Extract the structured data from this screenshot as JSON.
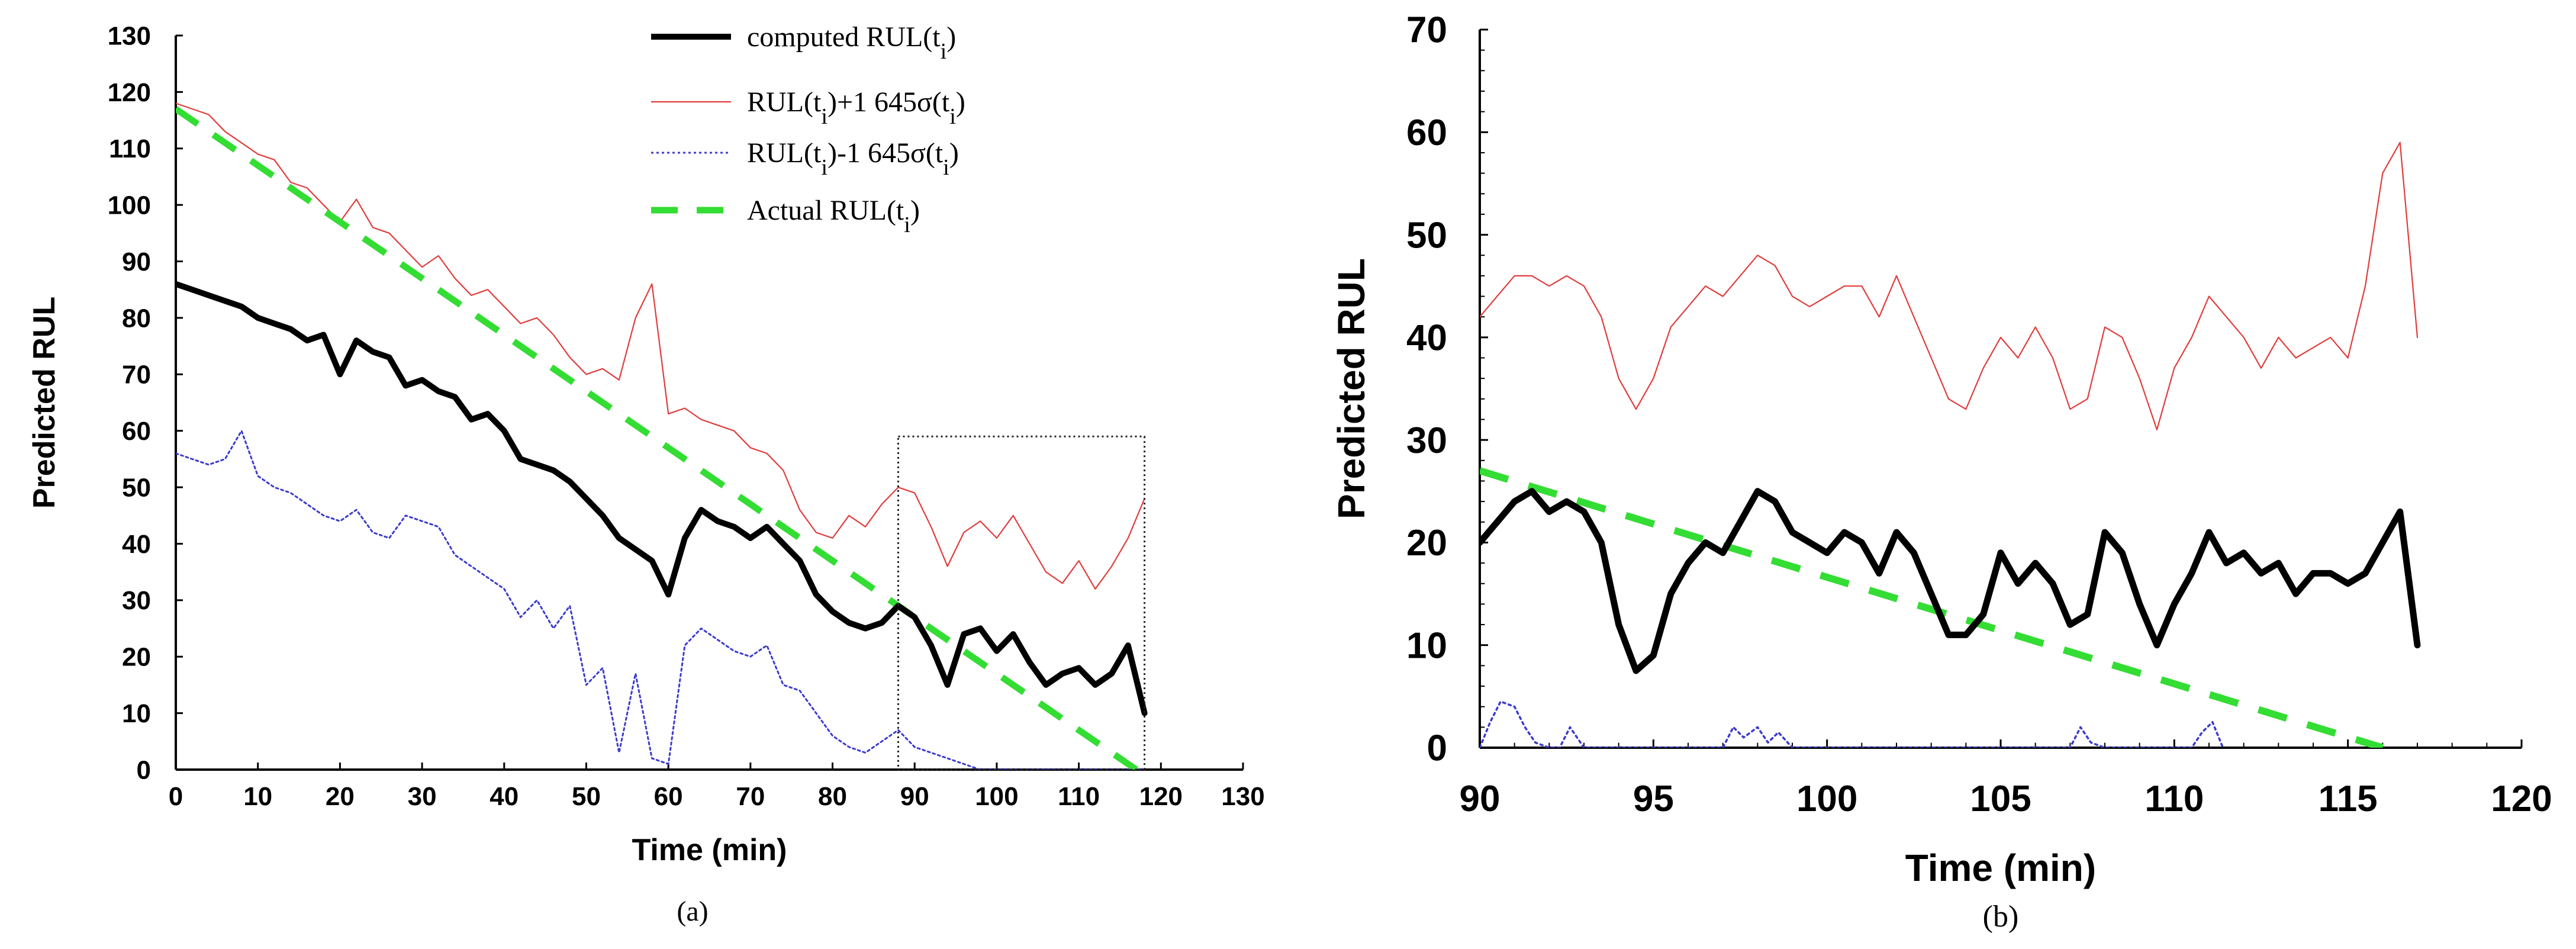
{
  "chart_data": [
    {
      "type": "line",
      "caption": "(a)",
      "xlabel": "Time (min)",
      "ylabel": "Predicted RUL",
      "xlim": [
        0,
        130
      ],
      "ylim": [
        0,
        130
      ],
      "x_ticks": [
        0,
        10,
        20,
        30,
        40,
        50,
        60,
        70,
        80,
        90,
        100,
        110,
        120,
        130
      ],
      "y_ticks": [
        0,
        10,
        20,
        30,
        40,
        50,
        60,
        70,
        80,
        90,
        100,
        110,
        120,
        130
      ],
      "legend": {
        "position": "top-right",
        "entries": [
          {
            "base": "computed RUL(t",
            "sub": "i",
            "suffix": ")",
            "color": "#000000",
            "style": "solid-thick"
          },
          {
            "base": "RUL(t",
            "sub": "i",
            "mid": ")+1 645σ(t",
            "sub2": "i",
            "suffix": ")",
            "color": "#e03c3c",
            "style": "solid-thin"
          },
          {
            "base": "RUL(t",
            "sub": "i",
            "mid": ")-1 645σ(t",
            "sub2": "i",
            "suffix": ")",
            "color": "#3b3bd0",
            "style": "dotted"
          },
          {
            "base": "Actual RUL(t",
            "sub": "i",
            "suffix": ")",
            "color": "#33dd33",
            "style": "dashed"
          }
        ]
      },
      "annotation": {
        "type": "dotted-box",
        "x_range": [
          88,
          118
        ],
        "y_range": [
          0,
          59
        ]
      },
      "series": [
        {
          "color": "#000000",
          "x": [
            0,
            2,
            4,
            6,
            8,
            10,
            12,
            14,
            16,
            18,
            20,
            22,
            24,
            26,
            28,
            30,
            32,
            34,
            36,
            38,
            40,
            42,
            44,
            46,
            48,
            50,
            52,
            54,
            56,
            58,
            60,
            62,
            64,
            66,
            68,
            70,
            72,
            74,
            76,
            78,
            80,
            82,
            84,
            86,
            88,
            90,
            92,
            94,
            96,
            98,
            100,
            102,
            104,
            106,
            108,
            110,
            112,
            114,
            116,
            118
          ],
          "y": [
            86,
            85,
            84,
            83,
            82,
            80,
            79,
            78,
            76,
            77,
            70,
            76,
            74,
            73,
            68,
            69,
            67,
            66,
            62,
            63,
            60,
            55,
            54,
            53,
            51,
            48,
            45,
            41,
            39,
            37,
            31,
            41,
            46,
            44,
            43,
            41,
            43,
            40,
            37,
            31,
            28,
            26,
            25,
            26,
            29,
            27,
            22,
            15,
            24,
            25,
            21,
            24,
            19,
            15,
            17,
            18,
            15,
            17,
            22,
            10
          ]
        },
        {
          "color": "#e03c3c",
          "x": [
            0,
            2,
            4,
            6,
            8,
            10,
            12,
            14,
            16,
            18,
            20,
            22,
            24,
            26,
            28,
            30,
            32,
            34,
            36,
            38,
            40,
            42,
            44,
            46,
            48,
            50,
            52,
            54,
            56,
            58,
            60,
            62,
            64,
            66,
            68,
            70,
            72,
            74,
            76,
            78,
            80,
            82,
            84,
            86,
            88,
            90,
            92,
            94,
            96,
            98,
            100,
            102,
            104,
            106,
            108,
            110,
            112,
            114,
            116,
            118
          ],
          "y": [
            118,
            117,
            116,
            113,
            111,
            109,
            108,
            104,
            103,
            100,
            97,
            101,
            96,
            95,
            92,
            89,
            91,
            87,
            84,
            85,
            82,
            79,
            80,
            77,
            73,
            70,
            71,
            69,
            80,
            86,
            63,
            64,
            62,
            61,
            60,
            57,
            56,
            53,
            46,
            42,
            41,
            45,
            43,
            47,
            50,
            49,
            43,
            36,
            42,
            44,
            41,
            45,
            40,
            35,
            33,
            37,
            32,
            36,
            41,
            48
          ]
        },
        {
          "color": "#3b3bd0",
          "x": [
            0,
            2,
            4,
            6,
            8,
            10,
            12,
            14,
            16,
            18,
            20,
            22,
            24,
            26,
            28,
            30,
            32,
            34,
            36,
            38,
            40,
            42,
            44,
            46,
            48,
            50,
            52,
            54,
            56,
            58,
            60,
            62,
            64,
            66,
            68,
            70,
            72,
            74,
            76,
            78,
            80,
            82,
            84,
            86,
            88,
            90,
            92,
            94,
            96,
            98,
            100,
            102,
            104,
            106,
            108,
            110,
            112,
            114,
            116,
            118
          ],
          "y": [
            56,
            55,
            54,
            55,
            60,
            52,
            50,
            49,
            47,
            45,
            44,
            46,
            42,
            41,
            45,
            44,
            43,
            38,
            36,
            34,
            32,
            27,
            30,
            25,
            29,
            15,
            18,
            3,
            17,
            2,
            1,
            22,
            25,
            23,
            21,
            20,
            22,
            15,
            14,
            10,
            6,
            4,
            3,
            5,
            7,
            4,
            3,
            2,
            1,
            0,
            0,
            0,
            0,
            0,
            0,
            0,
            0,
            0,
            0,
            0
          ]
        },
        {
          "color": "#33dd33",
          "x": [
            0,
            117
          ],
          "y": [
            117,
            0
          ]
        }
      ]
    },
    {
      "type": "line",
      "caption": "(b)",
      "xlabel": "Time (min)",
      "ylabel": "Predicted RUL",
      "xlim": [
        90,
        120
      ],
      "ylim": [
        0,
        70
      ],
      "x_ticks": [
        90,
        95,
        100,
        105,
        110,
        115,
        120
      ],
      "y_ticks": [
        0,
        10,
        20,
        30,
        40,
        50,
        60,
        70
      ],
      "series": [
        {
          "color": "#000000",
          "x": [
            90,
            90.5,
            91,
            91.5,
            92,
            92.5,
            93,
            93.5,
            94,
            94.5,
            95,
            95.5,
            96,
            96.5,
            97,
            97.5,
            98,
            98.5,
            99,
            99.5,
            100,
            100.5,
            101,
            101.5,
            102,
            102.5,
            103,
            103.5,
            104,
            104.5,
            105,
            105.5,
            106,
            106.5,
            107,
            107.5,
            108,
            108.5,
            109,
            109.5,
            110,
            110.5,
            111,
            111.5,
            112,
            112.5,
            113,
            113.5,
            114,
            114.5,
            115,
            115.5,
            116,
            116.5,
            117
          ],
          "y": [
            20,
            22,
            24,
            25,
            23,
            24,
            23,
            20,
            12,
            7.5,
            9,
            15,
            18,
            20,
            19,
            22,
            25,
            24,
            21,
            20,
            19,
            21,
            20,
            17,
            21,
            19,
            15,
            11,
            11,
            13,
            19,
            16,
            18,
            16,
            12,
            13,
            21,
            19,
            14,
            10,
            14,
            17,
            21,
            18,
            19,
            17,
            18,
            15,
            17,
            17,
            16,
            17,
            20,
            23,
            10
          ]
        },
        {
          "color": "#e03c3c",
          "x": [
            90,
            90.5,
            91,
            91.5,
            92,
            92.5,
            93,
            93.5,
            94,
            94.5,
            95,
            95.5,
            96,
            96.5,
            97,
            97.5,
            98,
            98.5,
            99,
            99.5,
            100,
            100.5,
            101,
            101.5,
            102,
            102.5,
            103,
            103.5,
            104,
            104.5,
            105,
            105.5,
            106,
            106.5,
            107,
            107.5,
            108,
            108.5,
            109,
            109.5,
            110,
            110.5,
            111,
            111.5,
            112,
            112.5,
            113,
            113.5,
            114,
            114.5,
            115,
            115.5,
            116,
            116.5,
            117
          ],
          "y": [
            42,
            44,
            46,
            46,
            45,
            46,
            45,
            42,
            36,
            33,
            36,
            41,
            43,
            45,
            44,
            46,
            48,
            47,
            44,
            43,
            44,
            45,
            45,
            42,
            46,
            42,
            38,
            34,
            33,
            37,
            40,
            38,
            41,
            38,
            33,
            34,
            41,
            40,
            36,
            31,
            37,
            40,
            44,
            42,
            40,
            37,
            40,
            38,
            39,
            40,
            38,
            45,
            56,
            59,
            40
          ]
        },
        {
          "color": "#3b3bd0",
          "x": [
            90,
            90.3,
            90.6,
            91,
            91.3,
            91.6,
            92,
            92.3,
            92.6,
            93,
            93.3,
            93.6,
            94,
            97,
            97.3,
            97.6,
            98,
            98.3,
            98.6,
            99,
            107,
            107.3,
            107.6,
            108,
            110.5,
            110.8,
            111.1,
            111.4
          ],
          "y": [
            0,
            2.5,
            4.5,
            4,
            2,
            0.5,
            0,
            0,
            2,
            0,
            0,
            0,
            0,
            0,
            2,
            1,
            2,
            0.5,
            1.5,
            0,
            0,
            2,
            0.5,
            0,
            0,
            1.5,
            2.5,
            0
          ]
        },
        {
          "color": "#33dd33",
          "x": [
            90,
            116
          ],
          "y": [
            27,
            0
          ]
        }
      ]
    }
  ]
}
